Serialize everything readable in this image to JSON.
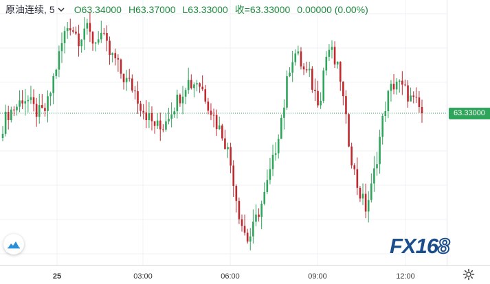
{
  "header": {
    "symbol": "原油连续,",
    "interval": "5",
    "open": "O63.34000",
    "high": "H63.37000",
    "low": "L63.33000",
    "close": "收=63.33000",
    "change": "0.00000 (0.00%)"
  },
  "price_tag": "63.33000",
  "time_axis": {
    "labels": [
      "25",
      "03:00",
      "06:00",
      "09:00",
      "12:00"
    ]
  },
  "logo": {
    "fx": "FX",
    "num": "16",
    "eight": "8"
  },
  "colors": {
    "up": "#2ea55a",
    "down": "#c1272d",
    "grid": "#eef0f3",
    "last_price_line": "#2ea55a",
    "logo": "#1b4e8d"
  },
  "icons": {
    "chevron": "chevron-down-icon",
    "cloud": "cloud-chart-icon",
    "settings": "gear-icon"
  },
  "chart_data": {
    "type": "candlestick",
    "symbol": "原油连续",
    "interval": "5",
    "x_ticks": [
      "25",
      "03:00",
      "06:00",
      "09:00",
      "12:00"
    ],
    "last_price": 63.33,
    "closes_approx": [
      63.3,
      63.33,
      63.34,
      63.35,
      63.37,
      63.36,
      63.34,
      63.33,
      63.33,
      63.36,
      63.42,
      63.47,
      63.52,
      63.55,
      63.53,
      63.51,
      63.54,
      63.52,
      63.5,
      63.53,
      63.5,
      63.47,
      63.46,
      63.43,
      63.41,
      63.4,
      63.38,
      63.35,
      63.33,
      63.31,
      63.3,
      63.29,
      63.32,
      63.34,
      63.36,
      63.38,
      63.41,
      63.4,
      63.41,
      63.39,
      63.36,
      63.33,
      63.3,
      63.28,
      63.24,
      63.18,
      63.1,
      63.05,
      63.02,
      63.05,
      63.09,
      63.12,
      63.17,
      63.22,
      63.29,
      63.35,
      63.44,
      63.48,
      63.46,
      63.43,
      63.42,
      63.38,
      63.36,
      63.46,
      63.49,
      63.45,
      63.42,
      63.32,
      63.24,
      63.17,
      63.13,
      63.1,
      63.14,
      63.21,
      63.29,
      63.36,
      63.39,
      63.41,
      63.39,
      63.38,
      63.36,
      63.35,
      63.33
    ]
  }
}
